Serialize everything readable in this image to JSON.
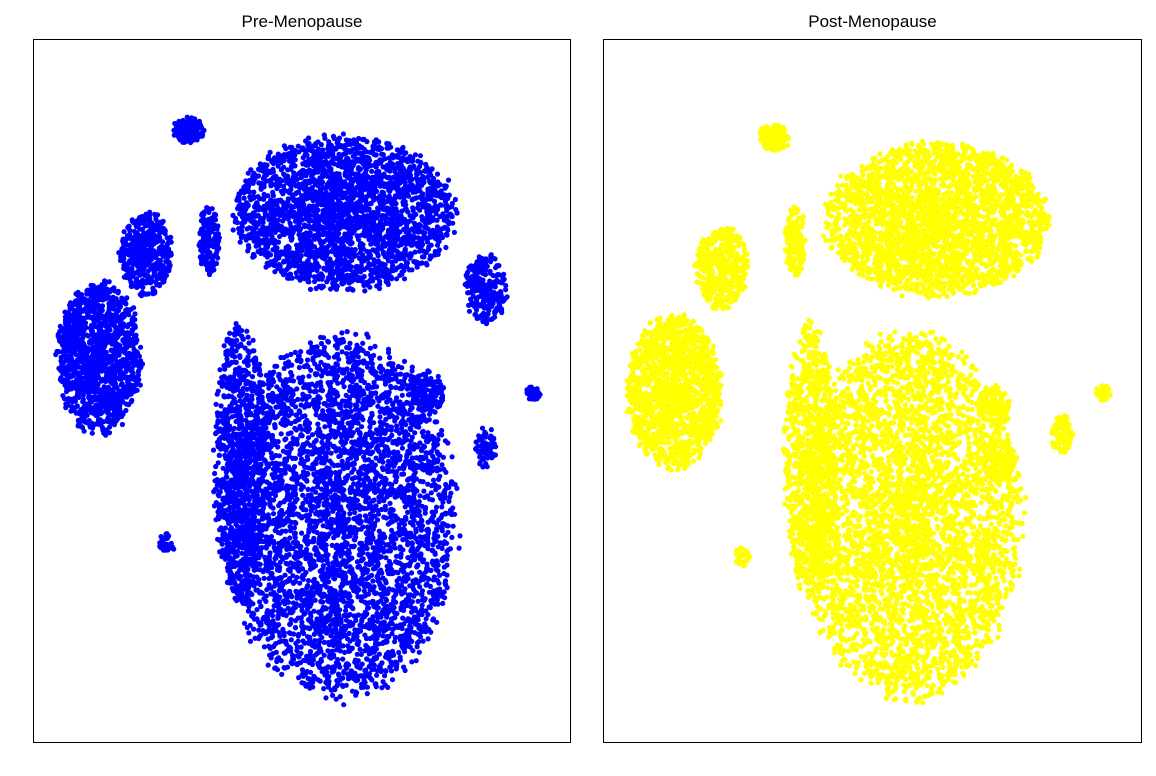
{
  "chart_data": [
    {
      "type": "scatter",
      "title": "Pre-Menopause",
      "xlabel": "",
      "ylabel": "",
      "grid": false,
      "legend": "none",
      "point_color": "#0000FF",
      "xlim": [
        0,
        100
      ],
      "ylim": [
        0,
        100
      ],
      "clusters": [
        {
          "cx": 58,
          "cy": 76,
          "rx": 21,
          "ry": 11,
          "n": 2600
        },
        {
          "cx": 57,
          "cy": 32,
          "rx": 22,
          "ry": 26,
          "n": 4200
        },
        {
          "cx": 38,
          "cy": 40,
          "rx": 5,
          "ry": 20,
          "n": 900
        },
        {
          "cx": 11,
          "cy": 55,
          "rx": 8,
          "ry": 11,
          "n": 1300
        },
        {
          "cx": 20,
          "cy": 70,
          "rx": 5,
          "ry": 6,
          "n": 450
        },
        {
          "cx": 32,
          "cy": 72,
          "rx": 2,
          "ry": 5,
          "n": 160
        },
        {
          "cx": 28,
          "cy": 88,
          "rx": 3,
          "ry": 2,
          "n": 130
        },
        {
          "cx": 74,
          "cy": 50,
          "rx": 3,
          "ry": 3,
          "n": 120
        },
        {
          "cx": 85,
          "cy": 65,
          "rx": 4,
          "ry": 5,
          "n": 220
        },
        {
          "cx": 85,
          "cy": 42,
          "rx": 2,
          "ry": 3,
          "n": 70
        },
        {
          "cx": 94,
          "cy": 50,
          "rx": 1.5,
          "ry": 1.2,
          "n": 35
        },
        {
          "cx": 24,
          "cy": 28,
          "rx": 1.5,
          "ry": 1.5,
          "n": 30
        }
      ]
    },
    {
      "type": "scatter",
      "title": "Post-Menopause",
      "xlabel": "",
      "ylabel": "",
      "grid": false,
      "legend": "none",
      "point_color": "#FFFF00",
      "xlim": [
        0,
        100
      ],
      "ylim": [
        0,
        100
      ],
      "clusters": [
        {
          "cx": 62,
          "cy": 75,
          "rx": 21,
          "ry": 11,
          "n": 2600
        },
        {
          "cx": 57,
          "cy": 32,
          "rx": 21,
          "ry": 26,
          "n": 4000
        },
        {
          "cx": 38,
          "cy": 40,
          "rx": 5,
          "ry": 20,
          "n": 850
        },
        {
          "cx": 12,
          "cy": 50,
          "rx": 9,
          "ry": 11,
          "n": 1300
        },
        {
          "cx": 21,
          "cy": 68,
          "rx": 5,
          "ry": 6,
          "n": 420
        },
        {
          "cx": 35,
          "cy": 72,
          "rx": 2,
          "ry": 5,
          "n": 150
        },
        {
          "cx": 31,
          "cy": 87,
          "rx": 3,
          "ry": 2,
          "n": 110
        },
        {
          "cx": 73,
          "cy": 48,
          "rx": 3,
          "ry": 3,
          "n": 110
        },
        {
          "cx": 74,
          "cy": 40,
          "rx": 3,
          "ry": 3,
          "n": 100
        },
        {
          "cx": 86,
          "cy": 44,
          "rx": 2,
          "ry": 3,
          "n": 70
        },
        {
          "cx": 94,
          "cy": 50,
          "rx": 1.5,
          "ry": 1.2,
          "n": 30
        },
        {
          "cx": 25,
          "cy": 26,
          "rx": 1.5,
          "ry": 1.5,
          "n": 30
        }
      ]
    }
  ]
}
